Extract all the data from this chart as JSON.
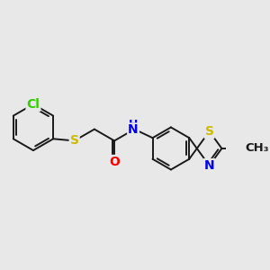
{
  "bg_color": "#e8e8e8",
  "bond_color": "#1a1a1a",
  "bond_width": 1.4,
  "atom_colors": {
    "Cl": "#33cc00",
    "S": "#ccbb00",
    "O": "#ff0000",
    "N": "#0000ee",
    "C": "#1a1a1a"
  },
  "font_size": 10,
  "font_size_methyl": 9.5
}
